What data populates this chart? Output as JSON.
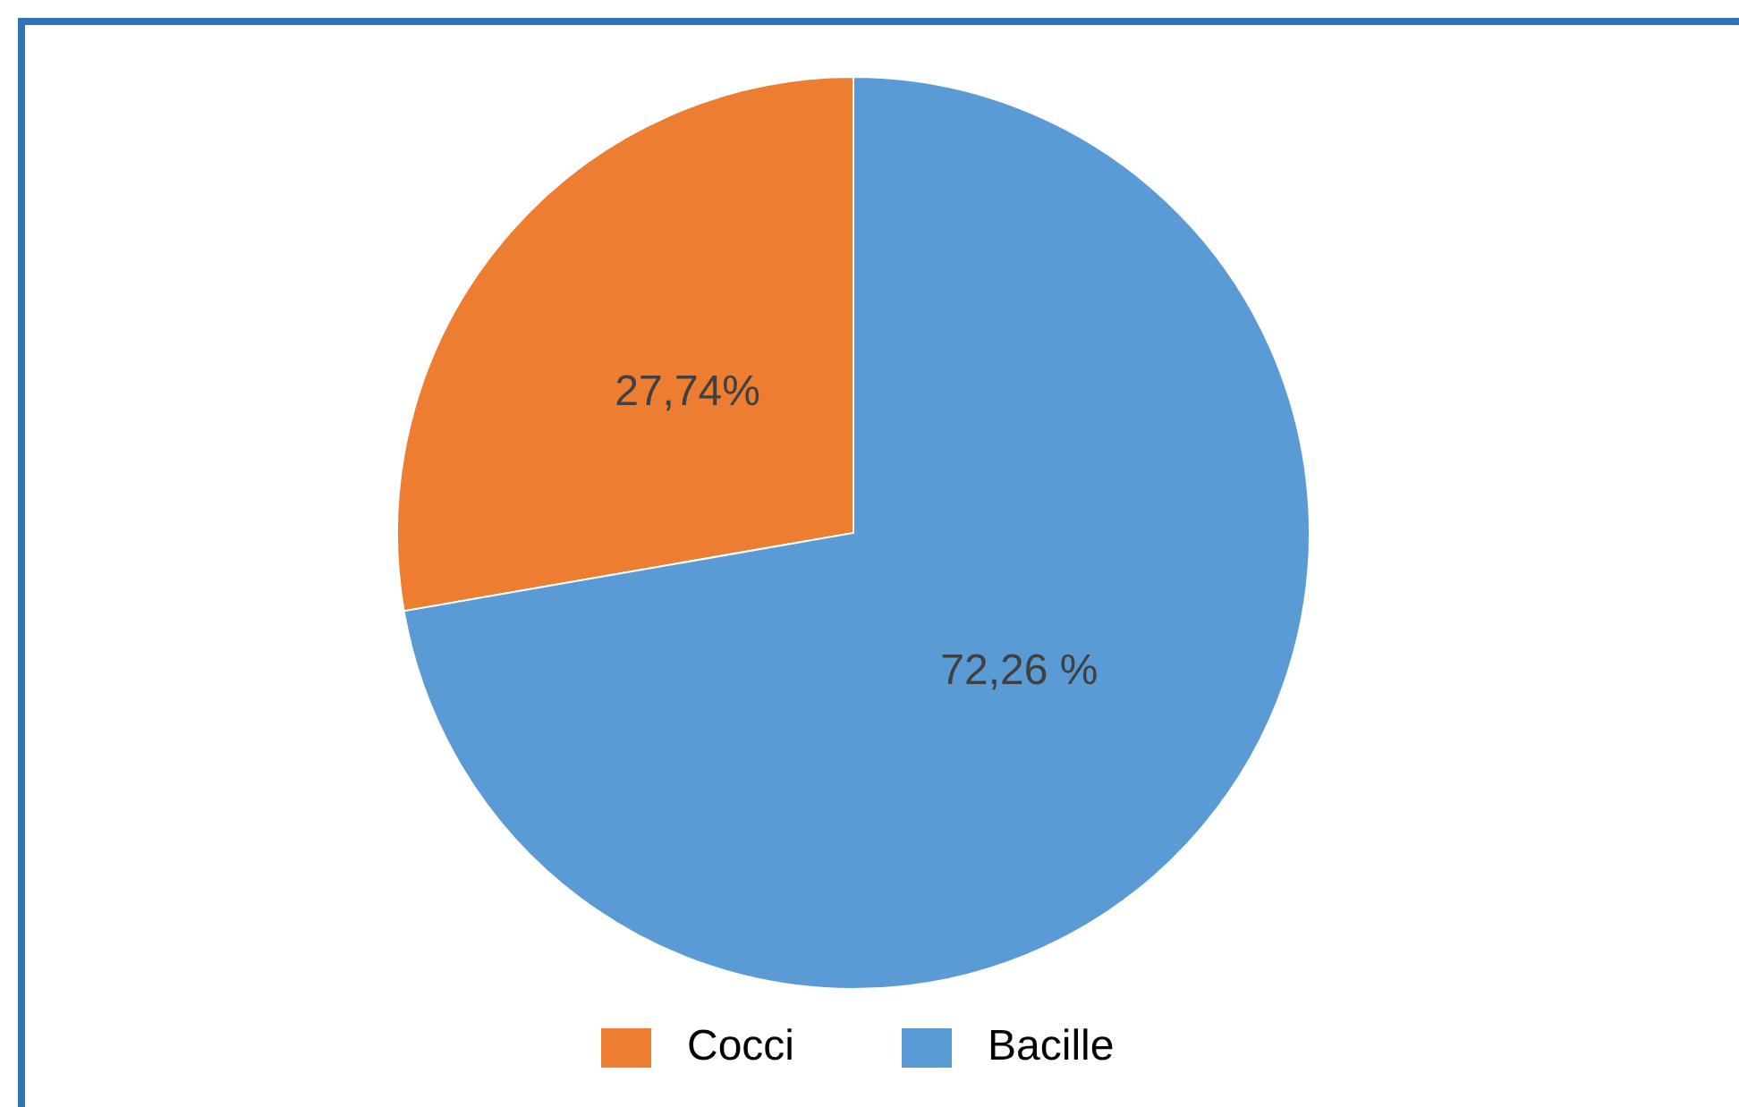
{
  "chart_data": {
    "type": "pie",
    "categories": [
      "Cocci",
      "Bacille"
    ],
    "values": [
      27.74,
      72.26
    ],
    "colors": [
      "#ed7d31",
      "#5b9bd5"
    ],
    "value_labels": [
      "27,74%",
      "72,26 %"
    ],
    "legend": "bottom"
  }
}
